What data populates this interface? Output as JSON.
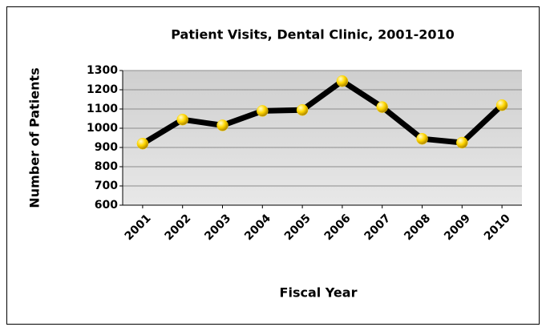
{
  "chart_data": {
    "type": "line",
    "title": "Patient Visits, Dental Clinic, 2001-2010",
    "x_label": "Fiscal Year",
    "y_label": "Number of Patients",
    "categories": [
      "2001",
      "2002",
      "2003",
      "2004",
      "2005",
      "2006",
      "2007",
      "2008",
      "2009",
      "2010"
    ],
    "series": [
      {
        "name": "Patients",
        "color": "#000000",
        "marker_color": "#ffd700",
        "values": [
          920,
          1045,
          1015,
          1090,
          1095,
          1245,
          1110,
          945,
          925,
          1120
        ]
      }
    ],
    "ylim": [
      600,
      1300
    ],
    "yticks": [
      600,
      700,
      800,
      900,
      1000,
      1100,
      1200,
      1300
    ],
    "grid": true,
    "legend": false
  }
}
